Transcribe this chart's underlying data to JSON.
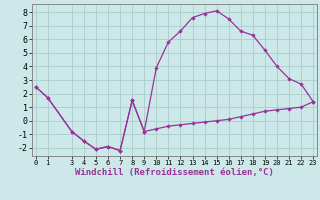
{
  "xlabel": "Windchill (Refroidissement éolien,°C)",
  "bg_color": "#cce8e8",
  "line_color": "#993399",
  "grid_color": "#aacccc",
  "hours": [
    0,
    1,
    3,
    4,
    5,
    6,
    7,
    8,
    9,
    10,
    11,
    12,
    13,
    14,
    15,
    16,
    17,
    18,
    19,
    20,
    21,
    22,
    23
  ],
  "temp": [
    2.5,
    1.7,
    -0.8,
    -1.5,
    -2.1,
    -1.9,
    -2.2,
    1.5,
    -0.8,
    3.9,
    5.8,
    6.6,
    7.6,
    7.9,
    8.1,
    7.5,
    6.6,
    6.3,
    5.2,
    4.0,
    3.1,
    2.7,
    1.4
  ],
  "windchill": [
    2.5,
    1.7,
    -0.8,
    -1.5,
    -2.1,
    -1.9,
    -2.2,
    1.5,
    -0.8,
    -0.6,
    -0.4,
    -0.3,
    -0.2,
    -0.1,
    0.0,
    0.1,
    0.3,
    0.5,
    0.7,
    0.8,
    0.9,
    1.0,
    1.4
  ],
  "ylim": [
    -2.6,
    8.6
  ],
  "yticks": [
    -2,
    -1,
    0,
    1,
    2,
    3,
    4,
    5,
    6,
    7,
    8
  ],
  "xlim": [
    -0.3,
    23.3
  ],
  "xticks": [
    0,
    1,
    3,
    4,
    5,
    6,
    7,
    8,
    9,
    10,
    11,
    12,
    13,
    14,
    15,
    16,
    17,
    18,
    19,
    20,
    21,
    22,
    23
  ]
}
